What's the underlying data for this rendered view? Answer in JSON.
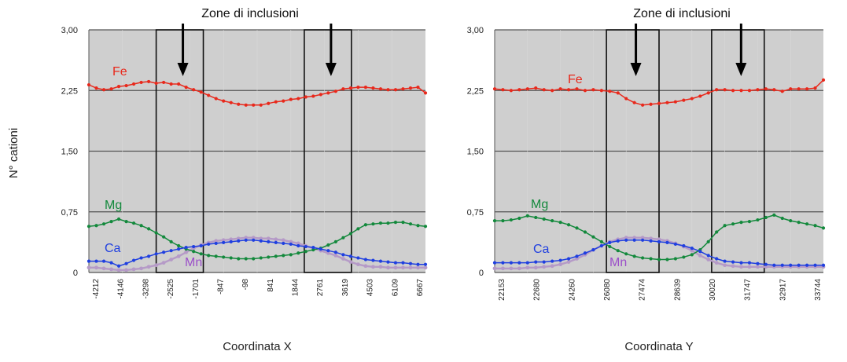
{
  "figure": {
    "ylabel": "N° cationi",
    "zone_label": "Zone di inclusioni"
  },
  "colors": {
    "plot_bg": "#cfcfcf",
    "grid": "#555555",
    "Fe": "#e8281b",
    "Mg": "#13893c",
    "Ca": "#1f3fe0",
    "Mn": "#9b4fc9",
    "Mn_line": "#b59ac7"
  },
  "chart_data": [
    {
      "type": "line",
      "xlabel": "Coordinata X",
      "ylabel": "N° cationi",
      "ylim": [
        0,
        3
      ],
      "yticks": [
        "0",
        "0,75",
        "1,50",
        "2,25",
        "3,00"
      ],
      "grid": "horizontal",
      "x_tick_labels": [
        "-4212",
        "-4146",
        "-3298",
        "-2525",
        "-1701",
        "-847",
        "-98",
        "841",
        "1844",
        "2761",
        "3619",
        "4503",
        "6109",
        "6667"
      ],
      "highlight_zones": [
        [
          0.2,
          0.34
        ],
        [
          0.64,
          0.78
        ]
      ],
      "series": [
        {
          "name": "Fe",
          "values": [
            2.32,
            2.28,
            2.26,
            2.27,
            2.3,
            2.31,
            2.33,
            2.35,
            2.36,
            2.34,
            2.35,
            2.33,
            2.33,
            2.29,
            2.26,
            2.23,
            2.19,
            2.15,
            2.12,
            2.1,
            2.08,
            2.07,
            2.07,
            2.07,
            2.09,
            2.11,
            2.12,
            2.14,
            2.15,
            2.17,
            2.18,
            2.2,
            2.22,
            2.24,
            2.27,
            2.28,
            2.29,
            2.29,
            2.28,
            2.27,
            2.26,
            2.26,
            2.27,
            2.28,
            2.29,
            2.22
          ]
        },
        {
          "name": "Mg",
          "values": [
            0.57,
            0.58,
            0.6,
            0.63,
            0.66,
            0.63,
            0.61,
            0.58,
            0.54,
            0.49,
            0.44,
            0.38,
            0.33,
            0.29,
            0.26,
            0.23,
            0.21,
            0.2,
            0.19,
            0.18,
            0.17,
            0.17,
            0.17,
            0.18,
            0.19,
            0.2,
            0.21,
            0.22,
            0.24,
            0.26,
            0.28,
            0.3,
            0.34,
            0.38,
            0.43,
            0.48,
            0.54,
            0.59,
            0.6,
            0.61,
            0.61,
            0.62,
            0.62,
            0.6,
            0.58,
            0.57
          ]
        },
        {
          "name": "Ca",
          "values": [
            0.14,
            0.14,
            0.14,
            0.12,
            0.08,
            0.11,
            0.15,
            0.18,
            0.2,
            0.23,
            0.25,
            0.27,
            0.29,
            0.31,
            0.32,
            0.33,
            0.35,
            0.36,
            0.37,
            0.38,
            0.39,
            0.4,
            0.4,
            0.39,
            0.38,
            0.37,
            0.36,
            0.35,
            0.33,
            0.32,
            0.31,
            0.29,
            0.27,
            0.25,
            0.22,
            0.2,
            0.18,
            0.16,
            0.15,
            0.14,
            0.13,
            0.12,
            0.12,
            0.11,
            0.1,
            0.1
          ]
        },
        {
          "name": "Mn",
          "values": [
            0.06,
            0.06,
            0.05,
            0.04,
            0.03,
            0.03,
            0.04,
            0.05,
            0.07,
            0.09,
            0.12,
            0.16,
            0.2,
            0.25,
            0.3,
            0.34,
            0.37,
            0.39,
            0.4,
            0.41,
            0.42,
            0.43,
            0.43,
            0.42,
            0.42,
            0.41,
            0.4,
            0.38,
            0.36,
            0.33,
            0.3,
            0.27,
            0.24,
            0.21,
            0.17,
            0.13,
            0.1,
            0.08,
            0.07,
            0.07,
            0.06,
            0.06,
            0.06,
            0.06,
            0.06,
            0.06
          ]
        }
      ]
    },
    {
      "type": "line",
      "xlabel": "Coordinata Y",
      "ylabel": "N° cationi",
      "ylim": [
        0,
        3
      ],
      "yticks": [
        "0",
        "0,75",
        "1,50",
        "2,25",
        "3,00"
      ],
      "grid": "horizontal",
      "x_tick_labels": [
        "22153",
        "22680",
        "24260",
        "26080",
        "27474",
        "28639",
        "30020",
        "31747",
        "32917",
        "33744"
      ],
      "highlight_zones": [
        [
          0.34,
          0.5
        ],
        [
          0.66,
          0.82
        ]
      ],
      "series": [
        {
          "name": "Fe",
          "values": [
            2.27,
            2.26,
            2.25,
            2.26,
            2.27,
            2.28,
            2.26,
            2.25,
            2.27,
            2.26,
            2.27,
            2.25,
            2.26,
            2.25,
            2.24,
            2.22,
            2.15,
            2.1,
            2.07,
            2.08,
            2.09,
            2.1,
            2.11,
            2.13,
            2.15,
            2.18,
            2.22,
            2.26,
            2.26,
            2.25,
            2.25,
            2.25,
            2.26,
            2.27,
            2.26,
            2.24,
            2.27,
            2.27,
            2.27,
            2.28,
            2.38
          ]
        },
        {
          "name": "Mg",
          "values": [
            0.64,
            0.64,
            0.65,
            0.67,
            0.7,
            0.68,
            0.66,
            0.64,
            0.62,
            0.59,
            0.55,
            0.5,
            0.44,
            0.38,
            0.32,
            0.27,
            0.23,
            0.2,
            0.18,
            0.17,
            0.16,
            0.16,
            0.17,
            0.19,
            0.22,
            0.28,
            0.38,
            0.5,
            0.58,
            0.6,
            0.62,
            0.63,
            0.65,
            0.68,
            0.71,
            0.67,
            0.64,
            0.62,
            0.6,
            0.58,
            0.55
          ]
        },
        {
          "name": "Ca",
          "values": [
            0.12,
            0.12,
            0.12,
            0.12,
            0.12,
            0.13,
            0.13,
            0.14,
            0.15,
            0.17,
            0.2,
            0.24,
            0.28,
            0.33,
            0.37,
            0.39,
            0.4,
            0.4,
            0.4,
            0.39,
            0.38,
            0.37,
            0.35,
            0.33,
            0.3,
            0.26,
            0.21,
            0.17,
            0.14,
            0.13,
            0.12,
            0.12,
            0.11,
            0.1,
            0.09,
            0.09,
            0.09,
            0.09,
            0.09,
            0.09,
            0.09
          ]
        },
        {
          "name": "Mn",
          "values": [
            0.05,
            0.05,
            0.05,
            0.05,
            0.06,
            0.06,
            0.07,
            0.08,
            0.1,
            0.13,
            0.17,
            0.22,
            0.28,
            0.33,
            0.38,
            0.41,
            0.43,
            0.43,
            0.43,
            0.42,
            0.41,
            0.39,
            0.36,
            0.32,
            0.27,
            0.21,
            0.16,
            0.12,
            0.09,
            0.08,
            0.07,
            0.07,
            0.07,
            0.07,
            0.07,
            0.07,
            0.07,
            0.07,
            0.07,
            0.07,
            0.07
          ]
        }
      ]
    }
  ]
}
